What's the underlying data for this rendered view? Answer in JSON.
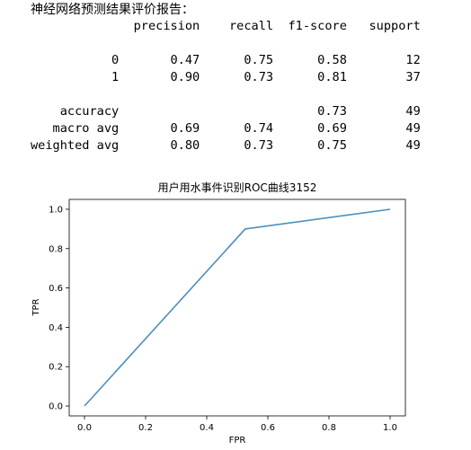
{
  "report": {
    "heading": "神经网络预测结果评价报告：",
    "lines": [
      "              precision    recall  f1-score   support",
      "",
      "           0       0.47      0.75      0.58        12",
      "           1       0.90      0.73      0.81        37",
      "",
      "    accuracy                           0.73        49",
      "   macro avg       0.69      0.74      0.69        49",
      "weighted avg       0.80      0.73      0.75        49"
    ]
  },
  "chart_data": {
    "type": "line",
    "title": "用户用水事件识别ROC曲线3152",
    "xlabel": "FPR",
    "ylabel": "TPR",
    "xlim": [
      -0.05,
      1.05
    ],
    "ylim": [
      -0.05,
      1.05
    ],
    "xticks": [
      0.0,
      0.2,
      0.4,
      0.6,
      0.8,
      1.0
    ],
    "xtick_labels": [
      "0.0",
      "0.2",
      "0.4",
      "0.6",
      "0.8",
      "1.0"
    ],
    "yticks": [
      0.0,
      0.2,
      0.4,
      0.6,
      0.8,
      1.0
    ],
    "ytick_labels": [
      "0.0",
      "0.2",
      "0.4",
      "0.6",
      "0.8",
      "1.0"
    ],
    "grid": false,
    "series": [
      {
        "x": [
          0.0,
          0.526,
          1.0
        ],
        "y": [
          0.0,
          0.9,
          1.0
        ],
        "color": "#4c8fc0"
      }
    ]
  }
}
